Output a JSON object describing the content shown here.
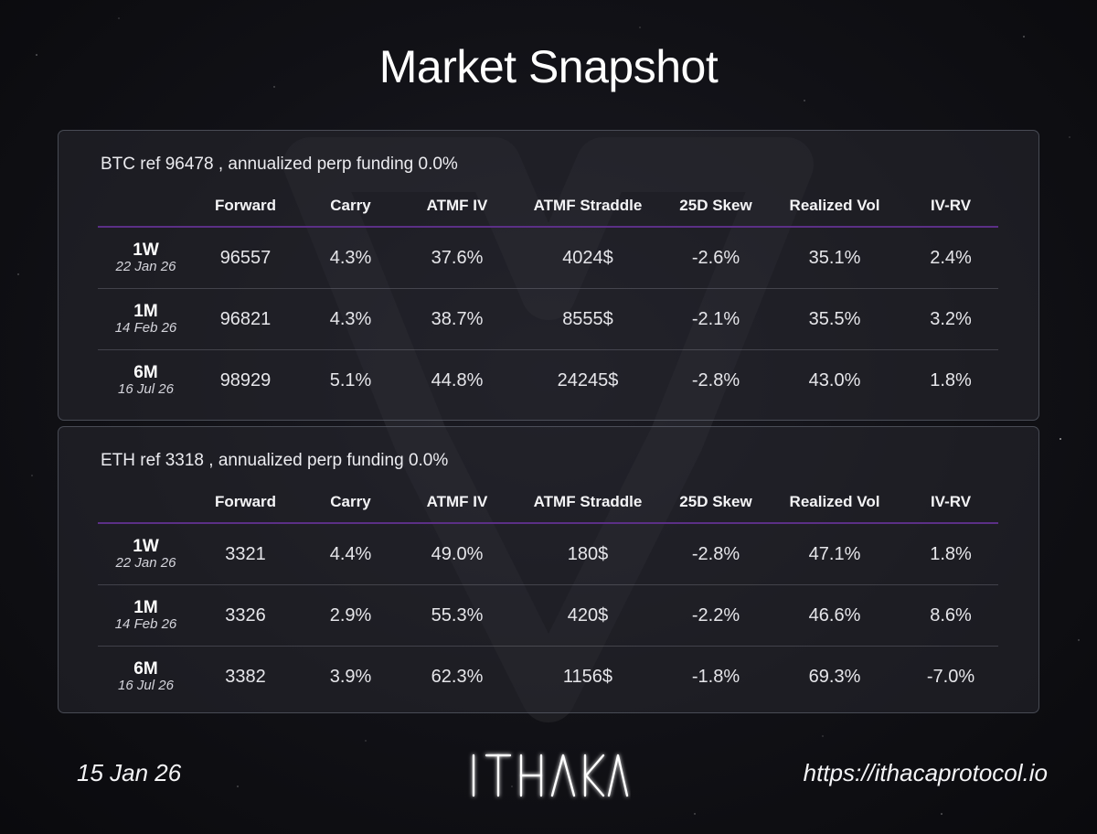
{
  "title": "Market Snapshot",
  "colors": {
    "accent_line": "#5b2f86",
    "background": "#111116",
    "panel_border": "#c0c8dc"
  },
  "btc": {
    "header": "BTC ref 96478 , annualized perp funding 0.0%",
    "columns": [
      "",
      "Forward",
      "Carry",
      "ATMF IV",
      "ATMF Straddle",
      "25D Skew",
      "Realized Vol",
      "IV-RV"
    ],
    "rows": [
      {
        "tenor": "1W",
        "date": "22 Jan 26",
        "forward": "96557",
        "carry": "4.3%",
        "atmf_iv": "37.6%",
        "straddle": "4024$",
        "skew": "-2.6%",
        "realized_vol": "35.1%",
        "iv_rv": "2.4%"
      },
      {
        "tenor": "1M",
        "date": "14 Feb 26",
        "forward": "96821",
        "carry": "4.3%",
        "atmf_iv": "38.7%",
        "straddle": "8555$",
        "skew": "-2.1%",
        "realized_vol": "35.5%",
        "iv_rv": "3.2%"
      },
      {
        "tenor": "6M",
        "date": "16 Jul 26",
        "forward": "98929",
        "carry": "5.1%",
        "atmf_iv": "44.8%",
        "straddle": "24245$",
        "skew": "-2.8%",
        "realized_vol": "43.0%",
        "iv_rv": "1.8%"
      }
    ]
  },
  "eth": {
    "header": "ETH ref 3318 , annualized perp funding 0.0%",
    "columns": [
      "",
      "Forward",
      "Carry",
      "ATMF IV",
      "ATMF Straddle",
      "25D Skew",
      "Realized Vol",
      "IV-RV"
    ],
    "rows": [
      {
        "tenor": "1W",
        "date": "22 Jan 26",
        "forward": "3321",
        "carry": "4.4%",
        "atmf_iv": "49.0%",
        "straddle": "180$",
        "skew": "-2.8%",
        "realized_vol": "47.1%",
        "iv_rv": "1.8%"
      },
      {
        "tenor": "1M",
        "date": "14 Feb 26",
        "forward": "3326",
        "carry": "2.9%",
        "atmf_iv": "55.3%",
        "straddle": "420$",
        "skew": "-2.2%",
        "realized_vol": "46.6%",
        "iv_rv": "8.6%"
      },
      {
        "tenor": "6M",
        "date": "16 Jul 26",
        "forward": "3382",
        "carry": "3.9%",
        "atmf_iv": "62.3%",
        "straddle": "1156$",
        "skew": "-1.8%",
        "realized_vol": "69.3%",
        "iv_rv": "-7.0%"
      }
    ]
  },
  "footer": {
    "date": "15 Jan 26",
    "logo_text": "ITHAKA",
    "logo_icon": "ithaka-logo",
    "url": "https://ithacaprotocol.io"
  }
}
